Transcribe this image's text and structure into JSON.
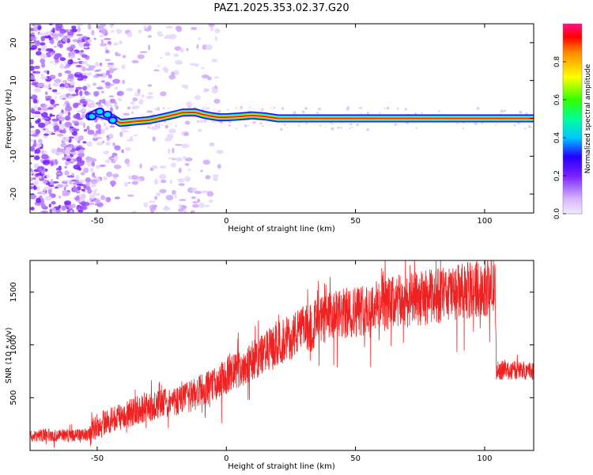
{
  "title": "PAZ1.2025.353.02.37.G20",
  "colors": {
    "signal": "#ee2222",
    "scatter": "#8a2be2",
    "track_core": "#ff1a1a"
  },
  "chart_data": [
    {
      "type": "heatmap",
      "name": "spectrogram",
      "xlabel": "Height of straight line (km)",
      "ylabel": "Frequency (Hz)",
      "xlim": [
        -76,
        119
      ],
      "ylim": [
        -25,
        25
      ],
      "xticks": [
        -50,
        0,
        50,
        100
      ],
      "yticks": [
        -20,
        -10,
        0,
        10,
        20
      ],
      "track": {
        "x": [
          -53,
          -50,
          -47,
          -44,
          -41,
          -38,
          -35,
          -30,
          -25,
          -20,
          -17,
          -12,
          -9,
          -6,
          -3,
          0,
          5,
          10,
          15,
          20,
          30,
          50,
          80,
          119
        ],
        "y": [
          0.5,
          1.5,
          0.8,
          0.0,
          -1.2,
          -1.0,
          -0.8,
          -0.5,
          0.2,
          1.0,
          1.5,
          1.6,
          1.0,
          0.6,
          0.3,
          0.3,
          0.5,
          0.8,
          0.5,
          0.0,
          0.0,
          0.0,
          0.0,
          0.0
        ]
      },
      "colorbar": {
        "label": "Normalized spectral amplitude",
        "range": [
          0.0,
          1.0
        ],
        "ticks": [
          "0.0",
          "0.2",
          "0.4",
          "0.6",
          "0.8"
        ]
      }
    },
    {
      "type": "line",
      "name": "snr",
      "xlabel": "Height of straight line (km)",
      "ylabel": "SNR (10 * v/v)",
      "xlim": [
        -76,
        119
      ],
      "ylim": [
        0,
        1800
      ],
      "xticks": [
        -50,
        0,
        50,
        100
      ],
      "yticks": [
        500,
        1000,
        1500
      ],
      "series": [
        {
          "name": "SNR",
          "x": [
            -76,
            -70,
            -60,
            -53,
            -50,
            -45,
            -40,
            -35,
            -30,
            -25,
            -20,
            -15,
            -10,
            -5,
            0,
            5,
            10,
            15,
            20,
            25,
            30,
            35,
            40,
            45,
            50,
            55,
            60,
            70,
            80,
            90,
            100,
            104,
            104.5,
            110,
            119
          ],
          "y": [
            130,
            150,
            140,
            150,
            250,
            280,
            330,
            380,
            410,
            440,
            460,
            500,
            560,
            620,
            700,
            770,
            850,
            930,
            1000,
            1080,
            1150,
            1210,
            1260,
            1290,
            1320,
            1350,
            1380,
            1420,
            1460,
            1500,
            1540,
            1560,
            760,
            760,
            760
          ]
        }
      ]
    }
  ]
}
